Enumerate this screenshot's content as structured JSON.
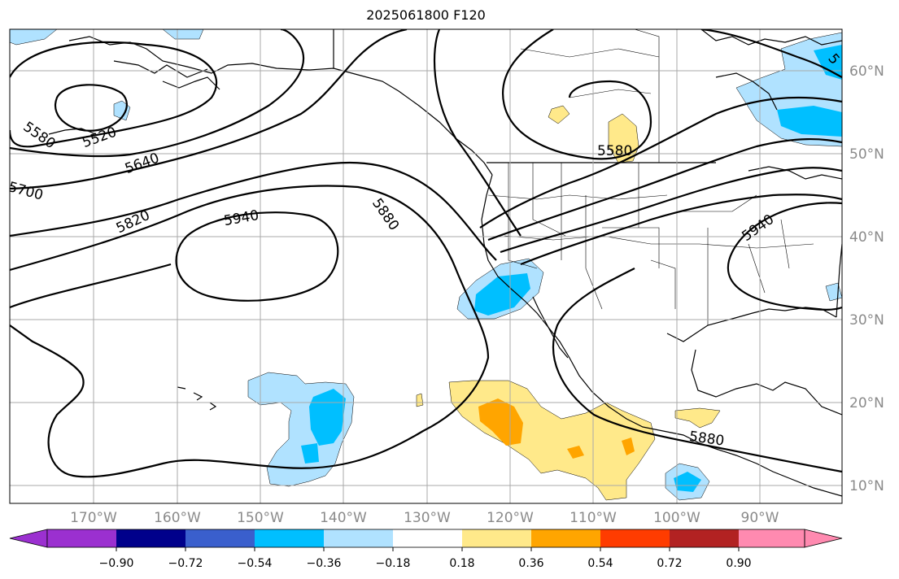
{
  "title": "2025061800 F120",
  "map": {
    "lon_labels": [
      "170°W",
      "160°W",
      "150°W",
      "140°W",
      "130°W",
      "120°W",
      "110°W",
      "100°W",
      "90°W"
    ],
    "lat_labels": [
      "60°N",
      "50°N",
      "40°N",
      "30°N",
      "20°N",
      "10°N"
    ],
    "contour_labels": [
      "5520",
      "5580",
      "5640",
      "5700",
      "5820",
      "5940",
      "5880",
      "5580",
      "5940",
      "5880",
      "5"
    ],
    "colors": {
      "contour": "#000000",
      "grid": "#a9a9a9",
      "coast": "#000000"
    }
  },
  "colorbar": {
    "ticks": [
      "−0.90",
      "−0.72",
      "−0.54",
      "−0.36",
      "−0.18",
      "0.18",
      "0.36",
      "0.54",
      "0.72",
      "0.90"
    ],
    "colors": [
      "#9b30d0",
      "#00008b",
      "#3a5fcd",
      "#00bfff",
      "#b0e2ff",
      "#ffffff",
      "#ffe98a",
      "#ffa500",
      "#ff3c00",
      "#b22222",
      "#ff8ab0"
    ]
  }
}
